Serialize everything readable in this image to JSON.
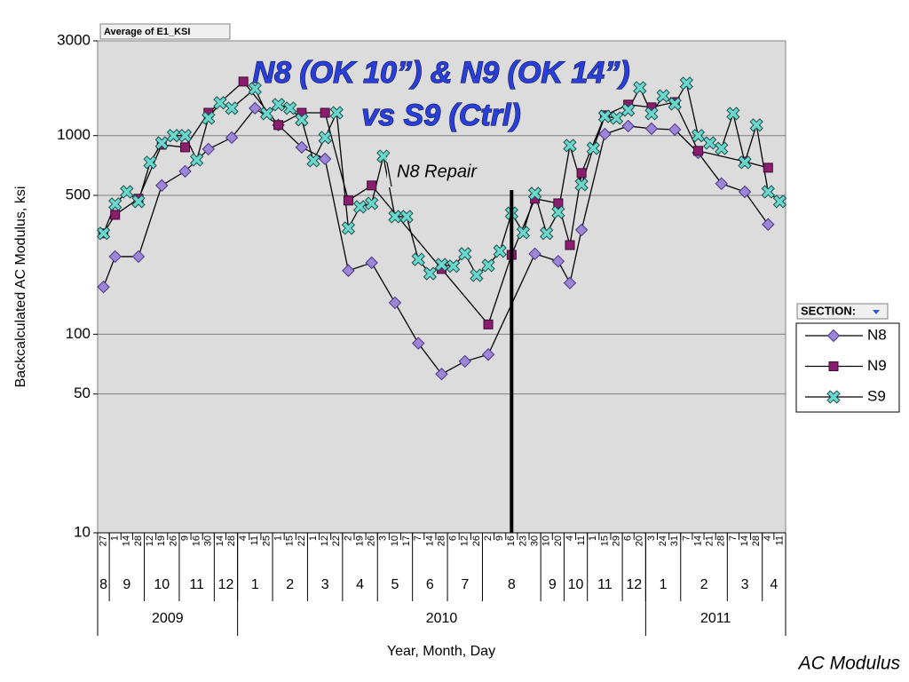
{
  "chart_data": {
    "type": "line",
    "title": [
      "N8 (OK 10”) & N9 (OK 14”)",
      "vs S9 (Ctrl)"
    ],
    "pivot_field": "Average of E1_KSI",
    "y_label": "Backcalculated AC Modulus, ksi",
    "x_label": "Year, Month, Day",
    "footnote": "AC Modulus",
    "annotation": {
      "text": "N8 Repair",
      "category_index": 35
    },
    "legend_title": "SECTION:",
    "legend_position": "right",
    "log_y": true,
    "grid": true,
    "ylim": [
      10,
      3000
    ],
    "yticks": [
      10,
      50,
      100,
      500,
      1000,
      3000
    ],
    "categories": [
      "27",
      "1",
      "14",
      "28",
      "12",
      "19",
      "26",
      "9",
      "16",
      "30",
      "14",
      "28",
      "4",
      "11",
      "25",
      "1",
      "15",
      "22",
      "1",
      "12",
      "22",
      "2",
      "19",
      "26",
      "3",
      "10",
      "17",
      "7",
      "14",
      "28",
      "6",
      "12",
      "26",
      "2",
      "9",
      "16",
      "23",
      "30",
      "10",
      "20",
      "4",
      "11",
      "1",
      "15",
      "29",
      "6",
      "20",
      "3",
      "24",
      "31",
      "7",
      "14",
      "21",
      "28",
      "7",
      "14",
      "28",
      "4",
      "11"
    ],
    "months": [
      {
        "label": "8",
        "count": 1
      },
      {
        "label": "9",
        "count": 3
      },
      {
        "label": "10",
        "count": 3
      },
      {
        "label": "11",
        "count": 3
      },
      {
        "label": "12",
        "count": 2
      },
      {
        "label": "1",
        "count": 3
      },
      {
        "label": "2",
        "count": 3
      },
      {
        "label": "3",
        "count": 3
      },
      {
        "label": "4",
        "count": 3
      },
      {
        "label": "5",
        "count": 3
      },
      {
        "label": "6",
        "count": 3
      },
      {
        "label": "7",
        "count": 3
      },
      {
        "label": "8",
        "count": 5
      },
      {
        "label": "9",
        "count": 2
      },
      {
        "label": "10",
        "count": 2
      },
      {
        "label": "11",
        "count": 3
      },
      {
        "label": "12",
        "count": 2
      },
      {
        "label": "1",
        "count": 3
      },
      {
        "label": "2",
        "count": 4
      },
      {
        "label": "3",
        "count": 3
      },
      {
        "label": "4",
        "count": 2
      }
    ],
    "years": [
      {
        "label": "2009",
        "count": 12
      },
      {
        "label": "2010",
        "count": 35
      },
      {
        "label": "2011",
        "count": 12
      }
    ],
    "series": [
      {
        "name": "N8",
        "color": "#9d86d8",
        "marker": "diamond",
        "values": [
          173,
          246,
          null,
          246,
          null,
          561,
          null,
          661,
          null,
          855,
          null,
          977,
          null,
          1374,
          null,
          1130,
          null,
          873,
          null,
          763,
          null,
          209,
          null,
          229,
          null,
          144,
          null,
          90,
          null,
          63,
          null,
          73,
          null,
          79,
          null,
          null,
          null,
          254,
          null,
          233,
          181,
          335,
          null,
          1018,
          null,
          1117,
          null,
          1084,
          null,
          1072,
          null,
          820,
          null,
          573,
          null,
          521,
          null,
          357,
          null
        ]
      },
      {
        "name": "N9",
        "color": "#8a1d6e",
        "marker": "square",
        "values": [
          322,
          399,
          null,
          481,
          null,
          900,
          null,
          873,
          null,
          1303,
          null,
          null,
          1871,
          null,
          null,
          1130,
          null,
          1303,
          null,
          1303,
          null,
          471,
          null,
          561,
          null,
          null,
          null,
          null,
          null,
          213,
          null,
          null,
          null,
          112,
          null,
          251,
          null,
          481,
          null,
          456,
          281,
          648,
          null,
          1265,
          null,
          1432,
          null,
          1388,
          null,
          1475,
          null,
          838,
          null,
          null,
          null,
          740,
          null,
          689,
          null
        ]
      },
      {
        "name": "S9",
        "color": "#6ad8cc",
        "marker": "x",
        "values": [
          322,
          452,
          521,
          466,
          733,
          918,
          1000,
          1000,
          755,
          1225,
          1462,
          1374,
          null,
          1722,
          1291,
          1432,
          1374,
          1202,
          748,
          977,
          1303,
          342,
          438,
          456,
          787,
          391,
          391,
          238,
          202,
          224,
          220,
          254,
          198,
          222,
          262,
          407,
          325,
          511,
          322,
          411,
          891,
          567,
          863,
          1250,
          1225,
          1346,
          1741,
          1291,
          1585,
          1445,
          1833,
          1000,
          918,
          863,
          1291,
          733,
          1130,
          521,
          466
        ]
      }
    ]
  }
}
